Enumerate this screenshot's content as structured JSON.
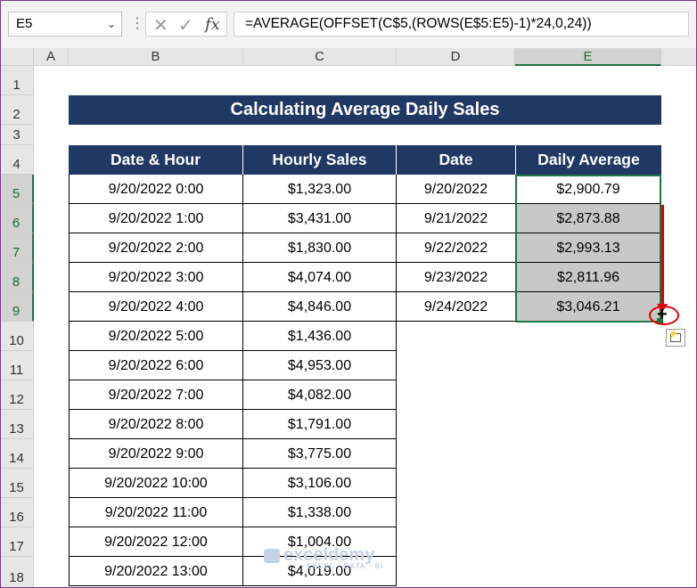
{
  "formula_bar": {
    "name_box": "E5",
    "formula": "=AVERAGE(OFFSET(C$5,(ROWS(E$5:E5)-1)*24,0,24))",
    "cancel_icon": "x-icon",
    "enter_icon": "check-icon",
    "fx_label": "fx"
  },
  "columns": [
    "A",
    "B",
    "C",
    "D",
    "E"
  ],
  "rows": [
    "1",
    "2",
    "3",
    "4",
    "5",
    "6",
    "7",
    "8",
    "9",
    "10",
    "11",
    "12",
    "13",
    "14",
    "15",
    "16",
    "17",
    "18"
  ],
  "title": "Calculating Average Daily Sales",
  "headers": {
    "date_hour": "Date & Hour",
    "hourly_sales": "Hourly Sales",
    "date": "Date",
    "daily_average": "Daily Average"
  },
  "hourly": [
    {
      "dt": "9/20/2022 0:00",
      "sales": "$1,323.00"
    },
    {
      "dt": "9/20/2022 1:00",
      "sales": "$3,431.00"
    },
    {
      "dt": "9/20/2022 2:00",
      "sales": "$1,830.00"
    },
    {
      "dt": "9/20/2022 3:00",
      "sales": "$4,074.00"
    },
    {
      "dt": "9/20/2022 4:00",
      "sales": "$4,846.00"
    },
    {
      "dt": "9/20/2022 5:00",
      "sales": "$1,436.00"
    },
    {
      "dt": "9/20/2022 6:00",
      "sales": "$4,953.00"
    },
    {
      "dt": "9/20/2022 7:00",
      "sales": "$4,082.00"
    },
    {
      "dt": "9/20/2022 8:00",
      "sales": "$1,791.00"
    },
    {
      "dt": "9/20/2022 9:00",
      "sales": "$3,775.00"
    },
    {
      "dt": "9/20/2022 10:00",
      "sales": "$3,106.00"
    },
    {
      "dt": "9/20/2022 11:00",
      "sales": "$1,338.00"
    },
    {
      "dt": "9/20/2022 12:00",
      "sales": "$1,004.00"
    },
    {
      "dt": "9/20/2022 13:00",
      "sales": "$4,019.00"
    }
  ],
  "daily": [
    {
      "date": "9/20/2022",
      "avg": "$2,900.79"
    },
    {
      "date": "9/21/2022",
      "avg": "$2,873.88"
    },
    {
      "date": "9/22/2022",
      "avg": "$2,993.13"
    },
    {
      "date": "9/23/2022",
      "avg": "$2,811.96"
    },
    {
      "date": "9/24/2022",
      "avg": "$3,046.21"
    }
  ],
  "watermark": {
    "name": "exceldemy",
    "tagline": "EXCEL · DATA · BI"
  },
  "colors": {
    "header_bg": "#203864",
    "selection": "#217346",
    "arrow": "#e00000",
    "filled": "#c8c8c8"
  }
}
